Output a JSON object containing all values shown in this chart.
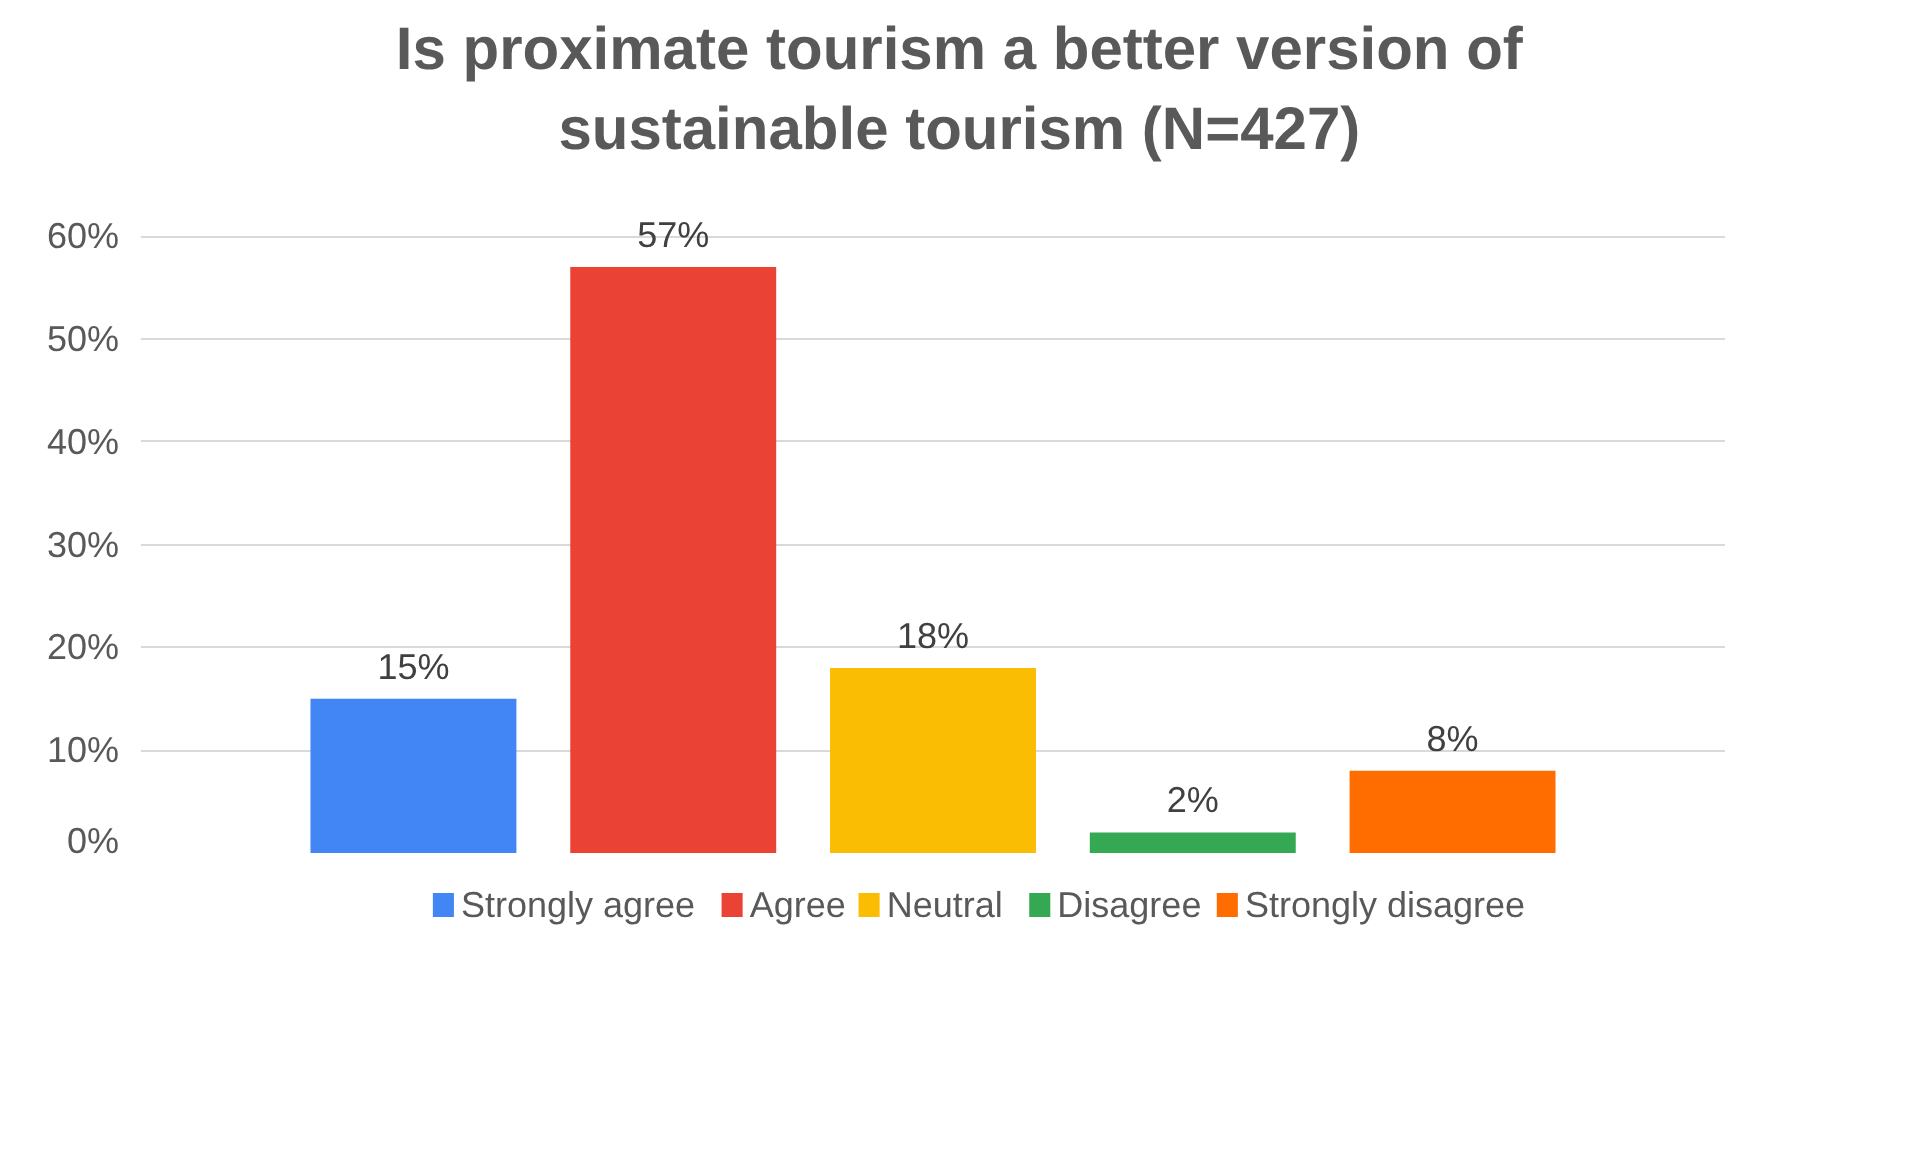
{
  "chart_data": {
    "type": "bar",
    "title": "Is proximate tourism a better version of sustainable tourism (N=427)",
    "categories": [
      null
    ],
    "series": [
      {
        "name": "Strongly agree",
        "color": "#4285f4",
        "values": [
          15
        ],
        "value_labels": [
          "15%"
        ]
      },
      {
        "name": "Agree",
        "color": "#ea4335",
        "values": [
          57
        ],
        "value_labels": [
          "57%"
        ]
      },
      {
        "name": "Neutral",
        "color": "#fbbc04",
        "values": [
          18
        ],
        "value_labels": [
          "18%"
        ]
      },
      {
        "name": "Disagree",
        "color": "#34a853",
        "values": [
          2
        ],
        "value_labels": [
          "2%"
        ]
      },
      {
        "name": "Strongly disagree",
        "color": "#ff6d01",
        "values": [
          8
        ],
        "value_labels": [
          "8%"
        ]
      }
    ],
    "ylim": [
      0,
      60
    ],
    "yticks": [
      {
        "value": 0,
        "label": "0%"
      },
      {
        "value": 10,
        "label": "10%"
      },
      {
        "value": 20,
        "label": "20%"
      },
      {
        "value": 30,
        "label": "30%"
      },
      {
        "value": 40,
        "label": "40%"
      },
      {
        "value": 50,
        "label": "50%"
      },
      {
        "value": 60,
        "label": "60%"
      }
    ],
    "grid": "y",
    "legend": "bottom"
  }
}
